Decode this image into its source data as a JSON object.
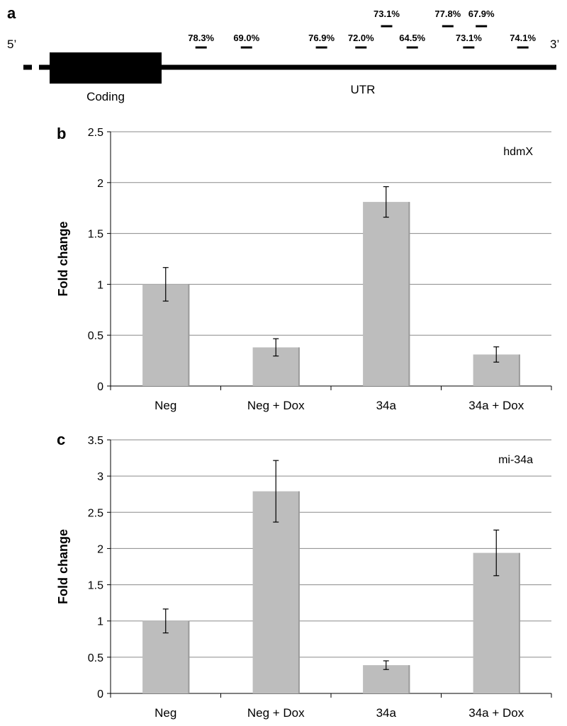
{
  "panel_a": {
    "letter": "a",
    "five_prime": "5’",
    "three_prime": "3’",
    "coding_label": "Coding",
    "utr_label": "UTR",
    "sites": [
      {
        "label": "78.3%",
        "tier": 1,
        "pos": 0.1
      },
      {
        "label": "69.0%",
        "tier": 1,
        "pos": 0.215
      },
      {
        "label": "76.9%",
        "tier": 1,
        "pos": 0.405
      },
      {
        "label": "72.0%",
        "tier": 1,
        "pos": 0.505
      },
      {
        "label": "73.1%",
        "tier": 2,
        "pos": 0.57
      },
      {
        "label": "64.5%",
        "tier": 1,
        "pos": 0.635
      },
      {
        "label": "77.8%",
        "tier": 2,
        "pos": 0.725
      },
      {
        "label": "73.1%",
        "tier": 1,
        "pos": 0.778
      },
      {
        "label": "67.9%",
        "tier": 2,
        "pos": 0.81
      },
      {
        "label": "74.1%",
        "tier": 1,
        "pos": 0.915
      }
    ]
  },
  "chart_data": [
    {
      "type": "bar",
      "panel": "b",
      "title": "hdmX",
      "ylabel": "Fold change",
      "xlabel": "",
      "categories": [
        "Neg",
        "Neg + Dox",
        "34a",
        "34a + Dox"
      ],
      "values": [
        1.0,
        0.38,
        1.81,
        0.31
      ],
      "errors": [
        0.165,
        0.085,
        0.15,
        0.075
      ],
      "ylim": [
        0,
        2.5
      ],
      "yticks": [
        "0",
        "0.5",
        "1",
        "1.5",
        "2",
        "2.5"
      ],
      "grid": true,
      "bar_color": "#bdbdbd"
    },
    {
      "type": "bar",
      "panel": "c",
      "title": "mi-34a",
      "ylabel": "Fold change",
      "xlabel": "",
      "categories": [
        "Neg",
        "Neg + Dox",
        "34a",
        "34a + Dox"
      ],
      "values": [
        1.0,
        2.79,
        0.39,
        1.94
      ],
      "errors": [
        0.165,
        0.425,
        0.06,
        0.315
      ],
      "ylim": [
        0,
        3.5
      ],
      "yticks": [
        "0",
        "0.5",
        "1",
        "1.5",
        "2",
        "2.5",
        "3",
        "3.5"
      ],
      "grid": true,
      "bar_color": "#bdbdbd"
    }
  ]
}
